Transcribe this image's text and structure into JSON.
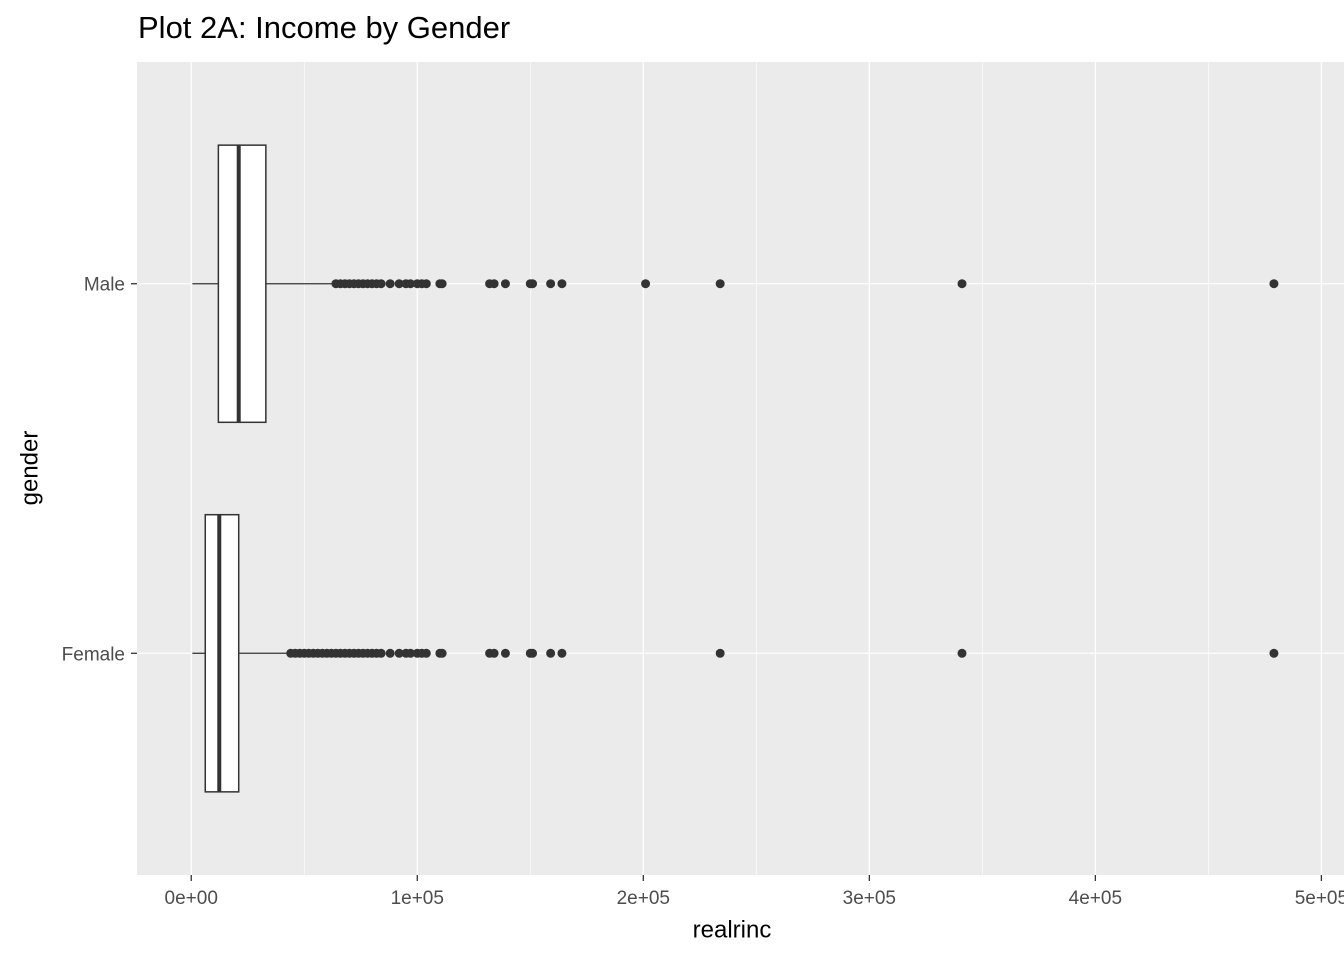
{
  "chart_data": {
    "type": "box",
    "title": "Plot 2A: Income by Gender",
    "xlabel": "realrinc",
    "ylabel": "gender",
    "categories": [
      "Male",
      "Female"
    ],
    "boxes": [
      {
        "min": 500,
        "q1": 12000,
        "median": 21000,
        "q3": 33000,
        "max": 63000,
        "outliers": [
          64000,
          66000,
          68000,
          70000,
          72000,
          74000,
          76000,
          78000,
          80000,
          82000,
          84000,
          88000,
          92000,
          95000,
          97000,
          100000,
          102000,
          104000,
          110000,
          111000,
          132000,
          134000,
          139000,
          150000,
          151000,
          159000,
          164000,
          201000,
          234000,
          341000,
          479000
        ]
      },
      {
        "min": 500,
        "q1": 6200,
        "median": 12400,
        "q3": 21000,
        "max": 43000,
        "outliers": [
          44000,
          46000,
          48000,
          50000,
          52000,
          54000,
          56000,
          58000,
          60000,
          62000,
          64000,
          66000,
          68000,
          70000,
          72000,
          74000,
          76000,
          78000,
          80000,
          82000,
          84000,
          88000,
          92000,
          95000,
          97000,
          100000,
          102000,
          104000,
          110000,
          111000,
          132000,
          134000,
          139000,
          150000,
          151000,
          159000,
          164000,
          234000,
          341000,
          479000
        ]
      }
    ],
    "xlim": [
      -24000,
      510000
    ],
    "xticks": [
      {
        "value": 0,
        "label": "0e+00"
      },
      {
        "value": 100000,
        "label": "1e+05"
      },
      {
        "value": 200000,
        "label": "2e+05"
      },
      {
        "value": 300000,
        "label": "3e+05"
      },
      {
        "value": 400000,
        "label": "4e+05"
      },
      {
        "value": 500000,
        "label": "5e+05"
      }
    ],
    "grid": true,
    "color": "#333333"
  }
}
